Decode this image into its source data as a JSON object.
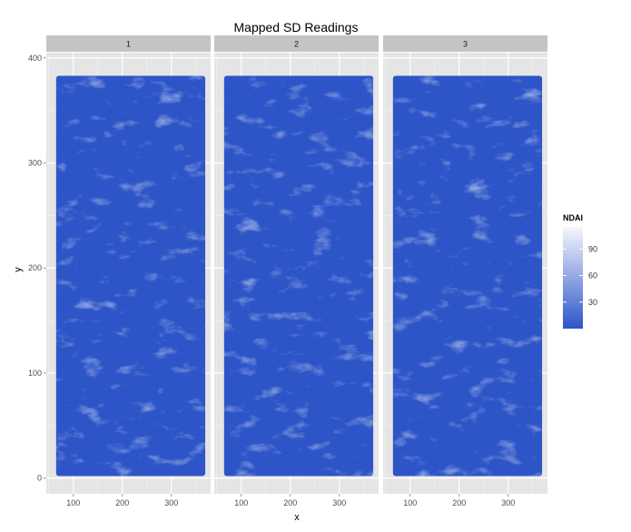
{
  "chart_data": {
    "type": "heatmap",
    "title": "Mapped SD Readings",
    "xlabel": "x",
    "ylabel": "y",
    "facets": [
      "1",
      "2",
      "3"
    ],
    "xlim": [
      45,
      380
    ],
    "ylim": [
      -15,
      405
    ],
    "x_ticks": [
      100,
      200,
      300
    ],
    "y_ticks": [
      0,
      100,
      200,
      300,
      400
    ],
    "x_extent": [
      65,
      369
    ],
    "y_extent": [
      2,
      383
    ],
    "grid": true,
    "legend": {
      "title": "NDAI",
      "position": "right",
      "ticks": [
        30,
        60,
        90
      ],
      "range": [
        0,
        115
      ],
      "color_low": "#2d55c8",
      "color_high": "#f6f7fd"
    }
  }
}
